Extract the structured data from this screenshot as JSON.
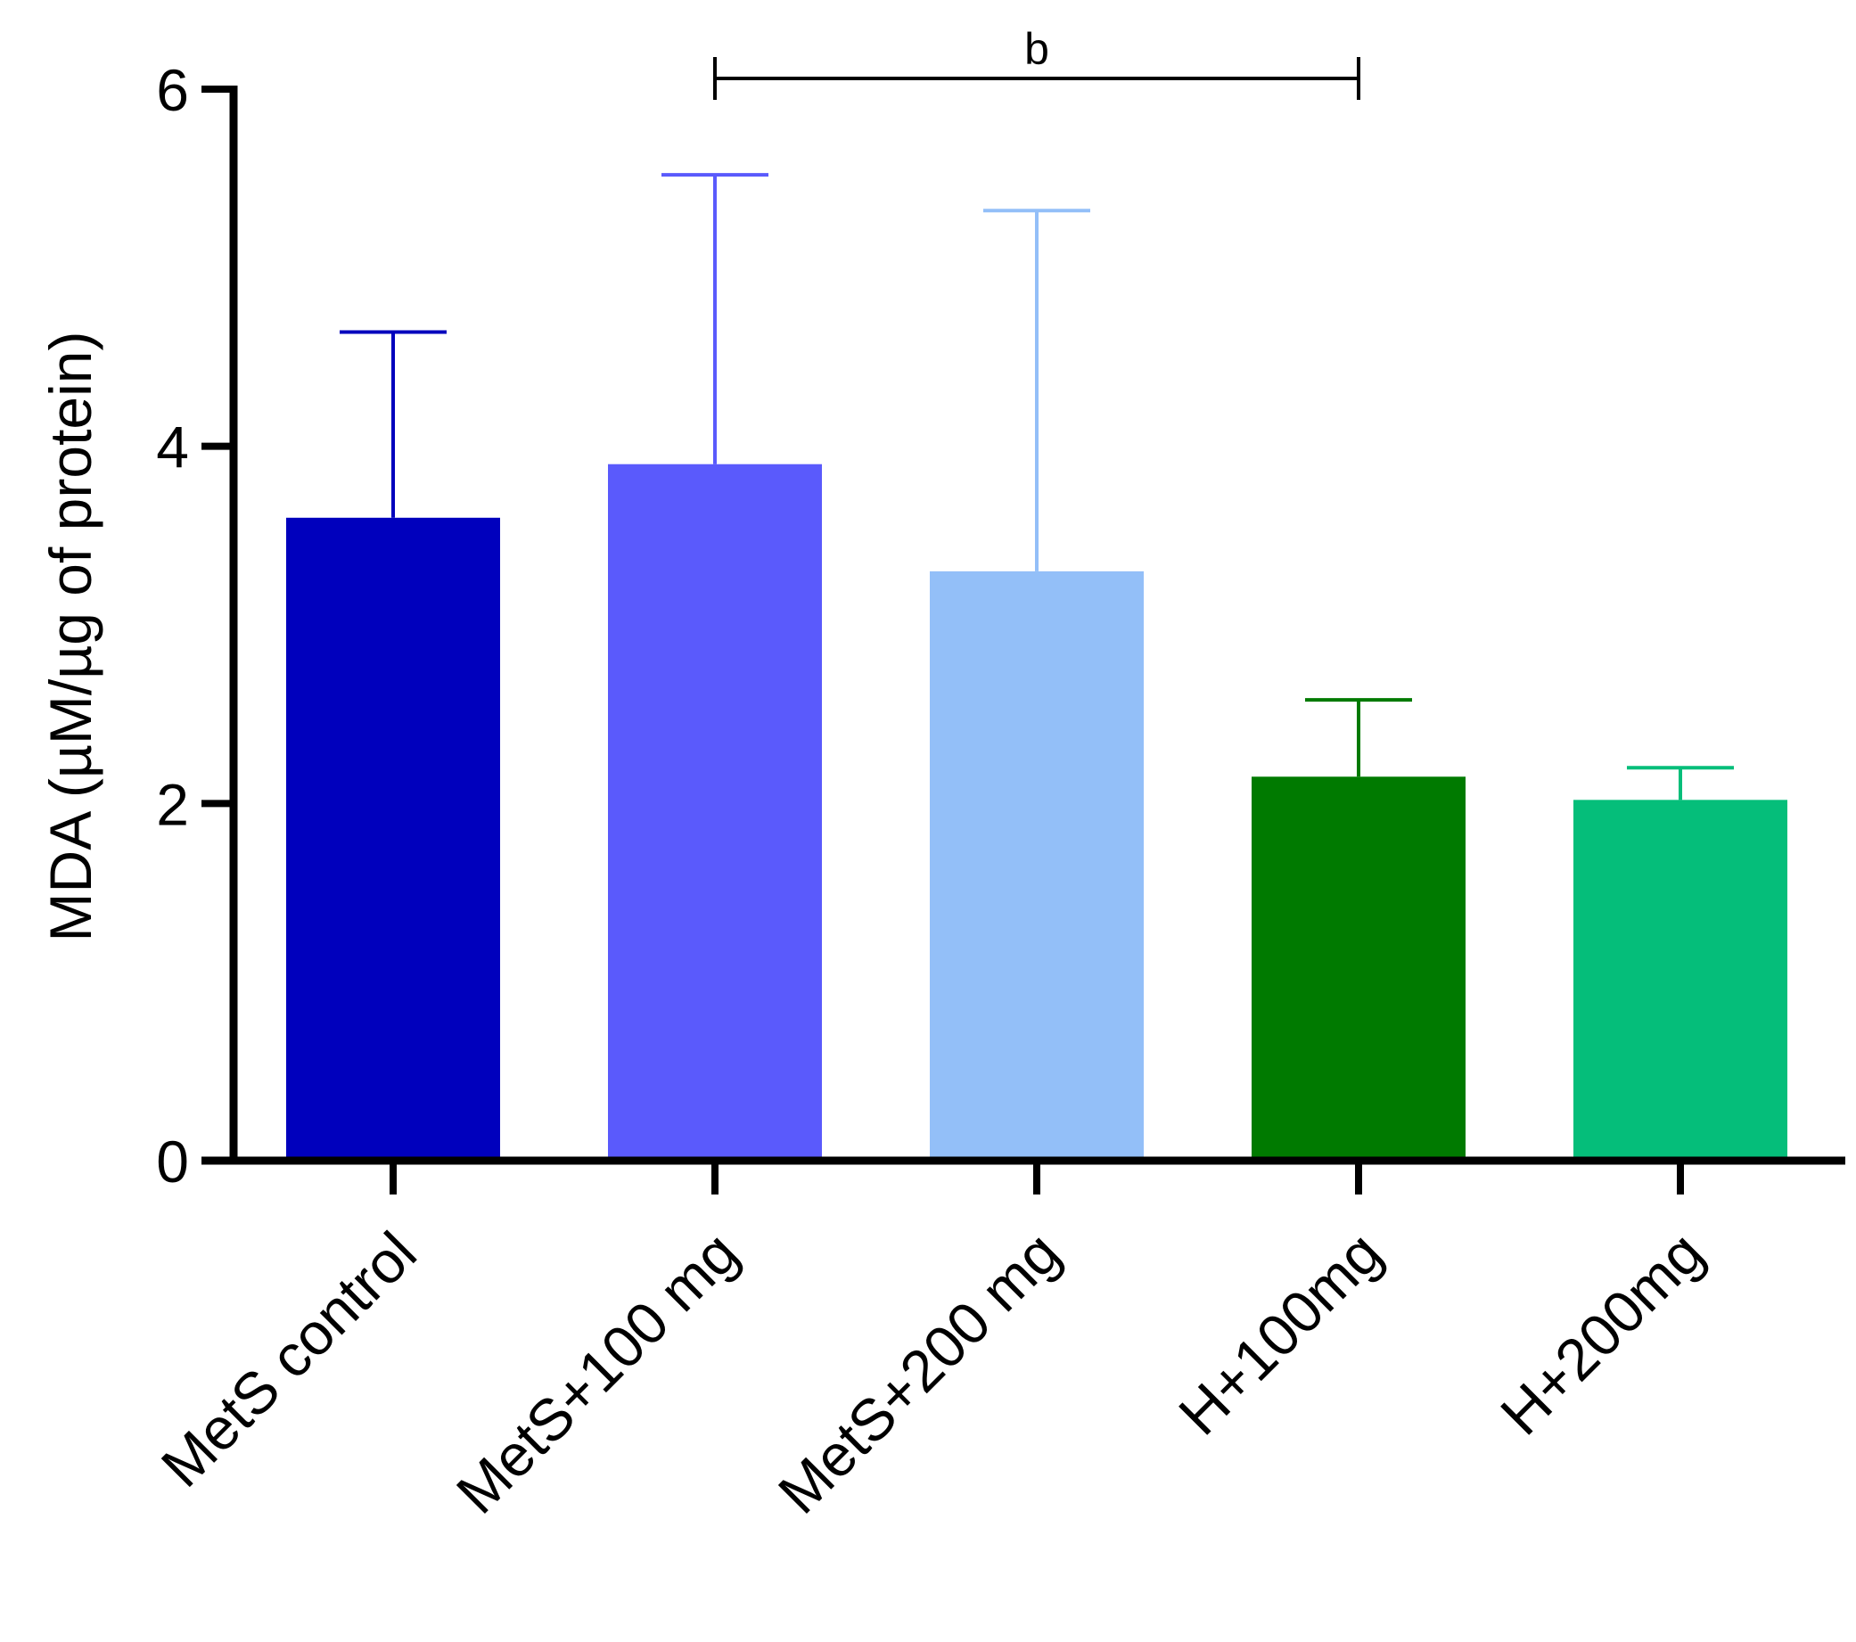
{
  "chart_data": {
    "type": "bar",
    "title": "",
    "xlabel": "",
    "ylabel": "MDA (µM/µg of protein)",
    "ylim": [
      0,
      6
    ],
    "yticks": [
      0,
      2,
      4,
      6
    ],
    "grid": false,
    "legend": "none",
    "categories": [
      "MetS control",
      "MetS+100 mg",
      "MetS+200 mg",
      "H+100mg",
      "H+200mg"
    ],
    "values": [
      3.6,
      3.9,
      3.3,
      2.15,
      2.02
    ],
    "error_upper": [
      1.04,
      1.62,
      2.02,
      0.43,
      0.18
    ],
    "colors": [
      "#0000BD",
      "#5A5AFC",
      "#93BFF8",
      "#007A00",
      "#05BE7A"
    ],
    "significance": [
      {
        "from_category": "MetS+100 mg",
        "to_category": "H+100mg",
        "label": "b"
      }
    ]
  }
}
